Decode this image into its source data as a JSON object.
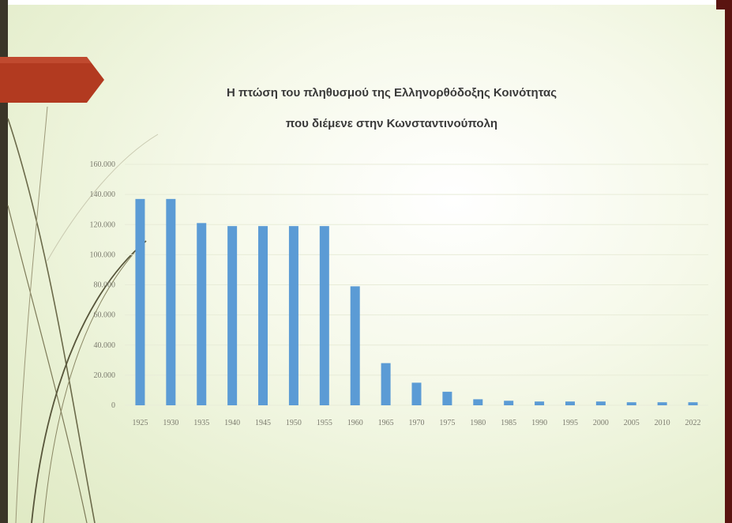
{
  "slide": {
    "accent_color": "#b23a20",
    "frame_color": "#5a1410",
    "decoration": "curved-line-swooshes"
  },
  "chart_data": {
    "type": "bar",
    "title": "Η πτώση του πληθυσμού της Ελληνορθόδοξης Κοινότητας",
    "subtitle": "που διέμενε στην Κωνσταντινούπολη",
    "xlabel": "",
    "ylabel": "",
    "categories": [
      "1925",
      "1930",
      "1935",
      "1940",
      "1945",
      "1950",
      "1955",
      "1960",
      "1965",
      "1970",
      "1975",
      "1980",
      "1985",
      "1990",
      "1995",
      "2000",
      "2005",
      "2010",
      "2022"
    ],
    "values": [
      137000,
      137000,
      121000,
      119000,
      119000,
      119000,
      119000,
      79000,
      28000,
      15000,
      9000,
      4000,
      3000,
      2500,
      2500,
      2500,
      2000,
      2000,
      2000
    ],
    "ylim": [
      0,
      160000
    ],
    "yticks": [
      0,
      20000,
      40000,
      60000,
      80000,
      100000,
      120000,
      140000,
      160000
    ],
    "ytick_labels": [
      "0",
      "20.000",
      "40.000",
      "60.000",
      "80.000",
      "100.000",
      "120.000",
      "140.000",
      "160.000"
    ],
    "grid": true,
    "legend": "none",
    "bar_color": "#5b9bd5",
    "grid_color": "#e8ecd8"
  }
}
